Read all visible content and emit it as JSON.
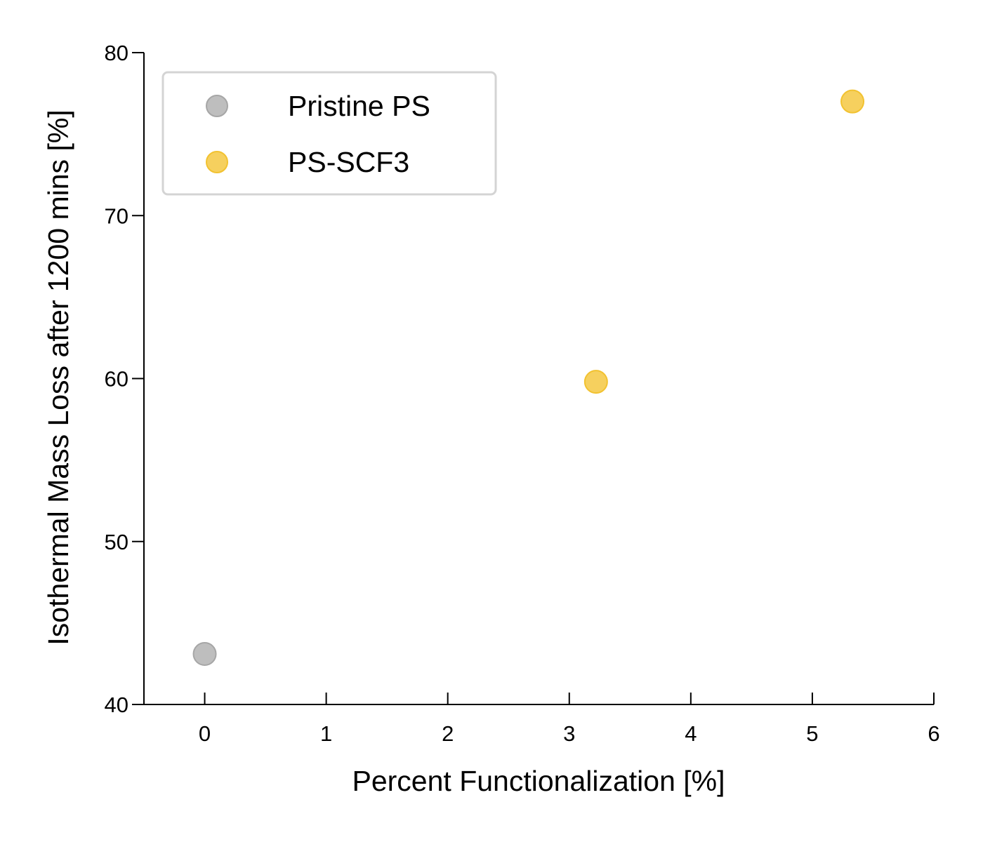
{
  "chart_data": {
    "type": "scatter",
    "title": "",
    "xlabel": "Percent Functionalization [%]",
    "ylabel": "Isothermal Mass Loss after 1200 mins [%]",
    "xlim": [
      -0.5,
      6
    ],
    "ylim": [
      40,
      80
    ],
    "xticks": [
      0,
      1,
      2,
      3,
      4,
      5,
      6
    ],
    "yticks": [
      40,
      50,
      60,
      70,
      80
    ],
    "grid": false,
    "legend_position": "top-left",
    "series": [
      {
        "name": "Pristine PS",
        "color": "#b3b3b3",
        "points": [
          {
            "x": 0,
            "y": 43.1
          }
        ]
      },
      {
        "name": "PS-SCF3",
        "color": "#f5c842",
        "points": [
          {
            "x": 3.22,
            "y": 59.8
          },
          {
            "x": 5.33,
            "y": 77.0
          }
        ]
      }
    ]
  }
}
